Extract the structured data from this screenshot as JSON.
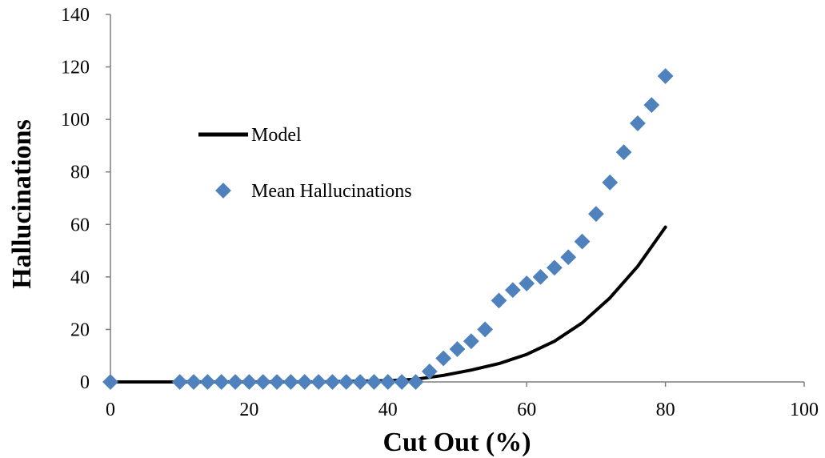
{
  "chart_data": {
    "type": "scatter",
    "xlabel": "Cut Out (%)",
    "ylabel": "Hallucinations",
    "xlim": [
      0,
      100
    ],
    "ylim": [
      0,
      140
    ],
    "xticks": [
      0,
      20,
      40,
      60,
      80,
      100
    ],
    "yticks": [
      0,
      20,
      40,
      60,
      80,
      100,
      120,
      140
    ],
    "grid": false,
    "legend": "center-left",
    "series": [
      {
        "name": "Model",
        "type": "line",
        "color": "#000000",
        "x": [
          0,
          10,
          20,
          30,
          40,
          44,
          48,
          52,
          56,
          60,
          64,
          68,
          72,
          76,
          80
        ],
        "y": [
          0,
          0,
          0,
          0,
          0.5,
          1,
          2.5,
          4.5,
          7,
          10.5,
          15.5,
          22.5,
          32,
          44,
          59
        ]
      },
      {
        "name": "Mean Hallucinations",
        "type": "scatter",
        "marker": "diamond",
        "color": "#4f81bd",
        "x": [
          0,
          10,
          12,
          14,
          16,
          18,
          20,
          22,
          24,
          26,
          28,
          30,
          32,
          34,
          36,
          38,
          40,
          42,
          44,
          46,
          48,
          50,
          52,
          54,
          56,
          58,
          60,
          62,
          64,
          66,
          68,
          70,
          72,
          74,
          76,
          78,
          80
        ],
        "y": [
          0,
          0,
          0,
          0,
          0,
          0,
          0,
          0,
          0,
          0,
          0,
          0,
          0,
          0,
          0,
          0,
          0,
          0,
          0,
          4,
          9,
          12.5,
          15.5,
          20,
          31,
          35,
          37.5,
          40,
          43.5,
          47.5,
          53.5,
          64,
          76,
          87.5,
          98.5,
          105.5,
          116.5
        ]
      }
    ]
  }
}
